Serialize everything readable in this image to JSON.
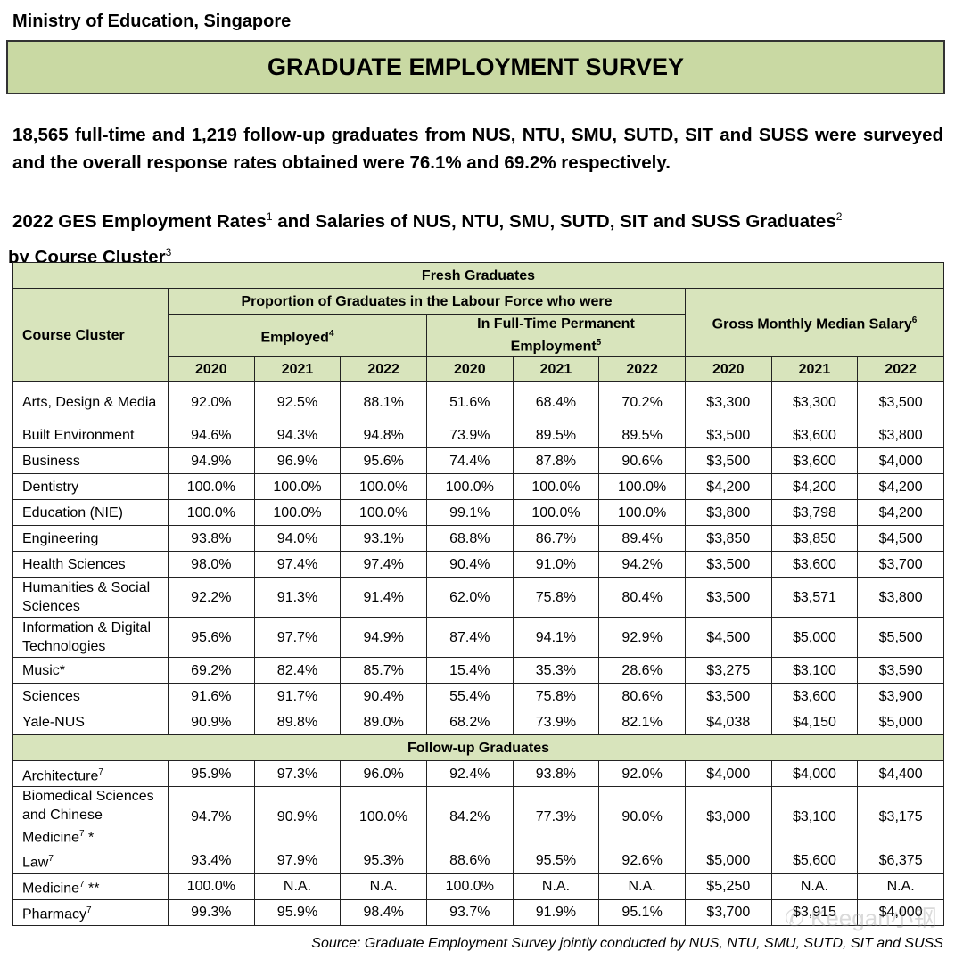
{
  "org": "Ministry of Education, Singapore",
  "title": "GRADUATE EMPLOYMENT SURVEY",
  "intro": "18,565 full-time and 1,219 follow-up graduates from NUS, NTU, SMU, SUTD, SIT and SUSS were surveyed and the overall response rates obtained were 76.1% and 69.2% respectively.",
  "subtitle": {
    "part1": "2022 GES Employment Rates",
    "sup1": "1",
    "part2": " and Salaries of NUS, NTU, SMU, SUTD, SIT and SUSS Graduates",
    "sup2": "2",
    "part3": " by Course Cluster",
    "sup3": "3"
  },
  "table": {
    "fresh_header": "Fresh Graduates",
    "followup_header": "Follow-up Graduates",
    "course_cluster": "Course Cluster",
    "proportion": "Proportion of Graduates in the Labour Force who were",
    "employed": "Employed",
    "employed_sup": "4",
    "ftpe": "In Full-Time Permanent Employment",
    "ftpe_sup": "5",
    "salary": "Gross Monthly Median Salary",
    "salary_sup": "6",
    "years": [
      "2020",
      "2021",
      "2022",
      "2020",
      "2021",
      "2022",
      "2020",
      "2021",
      "2022"
    ],
    "fresh_rows": [
      {
        "name": "Arts, Design & Media",
        "lines": 2,
        "values": [
          "92.0%",
          "92.5%",
          "88.1%",
          "51.6%",
          "68.4%",
          "70.2%",
          "$3,300",
          "$3,300",
          "$3,500"
        ]
      },
      {
        "name": "Built Environment",
        "values": [
          "94.6%",
          "94.3%",
          "94.8%",
          "73.9%",
          "89.5%",
          "89.5%",
          "$3,500",
          "$3,600",
          "$3,800"
        ]
      },
      {
        "name": "Business",
        "values": [
          "94.9%",
          "96.9%",
          "95.6%",
          "74.4%",
          "87.8%",
          "90.6%",
          "$3,500",
          "$3,600",
          "$4,000"
        ]
      },
      {
        "name": "Dentistry",
        "values": [
          "100.0%",
          "100.0%",
          "100.0%",
          "100.0%",
          "100.0%",
          "100.0%",
          "$4,200",
          "$4,200",
          "$4,200"
        ]
      },
      {
        "name": "Education (NIE)",
        "values": [
          "100.0%",
          "100.0%",
          "100.0%",
          "99.1%",
          "100.0%",
          "100.0%",
          "$3,800",
          "$3,798",
          "$4,200"
        ]
      },
      {
        "name": "Engineering",
        "values": [
          "93.8%",
          "94.0%",
          "93.1%",
          "68.8%",
          "86.7%",
          "89.4%",
          "$3,850",
          "$3,850",
          "$4,500"
        ]
      },
      {
        "name": "Health Sciences",
        "values": [
          "98.0%",
          "97.4%",
          "97.4%",
          "90.4%",
          "91.0%",
          "94.2%",
          "$3,500",
          "$3,600",
          "$3,700"
        ]
      },
      {
        "name": "Humanities & Social Sciences",
        "lines": 2,
        "values": [
          "92.2%",
          "91.3%",
          "91.4%",
          "62.0%",
          "75.8%",
          "80.4%",
          "$3,500",
          "$3,571",
          "$3,800"
        ]
      },
      {
        "name": "Information & Digital Technologies",
        "lines": 2,
        "values": [
          "95.6%",
          "97.7%",
          "94.9%",
          "87.4%",
          "94.1%",
          "92.9%",
          "$4,500",
          "$5,000",
          "$5,500"
        ]
      },
      {
        "name": "Music*",
        "values": [
          "69.2%",
          "82.4%",
          "85.7%",
          "15.4%",
          "35.3%",
          "28.6%",
          "$3,275",
          "$3,100",
          "$3,590"
        ]
      },
      {
        "name": "Sciences",
        "values": [
          "91.6%",
          "91.7%",
          "90.4%",
          "55.4%",
          "75.8%",
          "80.6%",
          "$3,500",
          "$3,600",
          "$3,900"
        ]
      },
      {
        "name": "Yale-NUS",
        "values": [
          "90.9%",
          "89.8%",
          "89.0%",
          "68.2%",
          "73.9%",
          "82.1%",
          "$4,038",
          "$4,150",
          "$5,000"
        ]
      }
    ],
    "followup_rows": [
      {
        "name": "Architecture",
        "sup": "7",
        "suffix": "",
        "values": [
          "95.9%",
          "97.3%",
          "96.0%",
          "92.4%",
          "93.8%",
          "92.0%",
          "$4,000",
          "$4,000",
          "$4,400"
        ]
      },
      {
        "name": "Biomedical Sciences and Chinese Medicine",
        "sup": "7",
        "suffix": " *",
        "lines": 3,
        "values": [
          "94.7%",
          "90.9%",
          "100.0%",
          "84.2%",
          "77.3%",
          "90.0%",
          "$3,000",
          "$3,100",
          "$3,175"
        ]
      },
      {
        "name": "Law",
        "sup": "7",
        "suffix": "",
        "values": [
          "93.4%",
          "97.9%",
          "95.3%",
          "88.6%",
          "95.5%",
          "92.6%",
          "$5,000",
          "$5,600",
          "$6,375"
        ]
      },
      {
        "name": "Medicine",
        "sup": "7",
        "suffix": " **",
        "values": [
          "100.0%",
          "N.A.",
          "N.A.",
          "100.0%",
          "N.A.",
          "N.A.",
          "$5,250",
          "N.A.",
          "N.A."
        ]
      },
      {
        "name": "Pharmacy",
        "sup": "7",
        "suffix": "",
        "values": [
          "99.3%",
          "95.9%",
          "98.4%",
          "93.7%",
          "91.9%",
          "95.1%",
          "$3,700",
          "$3,915",
          "$4,000"
        ]
      }
    ]
  },
  "source": "Source: Graduate Employment Survey jointly conducted by NUS, NTU, SMU, SUTD, SIT and SUSS",
  "watermark": "Keegan小钢",
  "colors": {
    "title_bg": "#c9d9a3",
    "header_bg": "#d8e4bc"
  }
}
